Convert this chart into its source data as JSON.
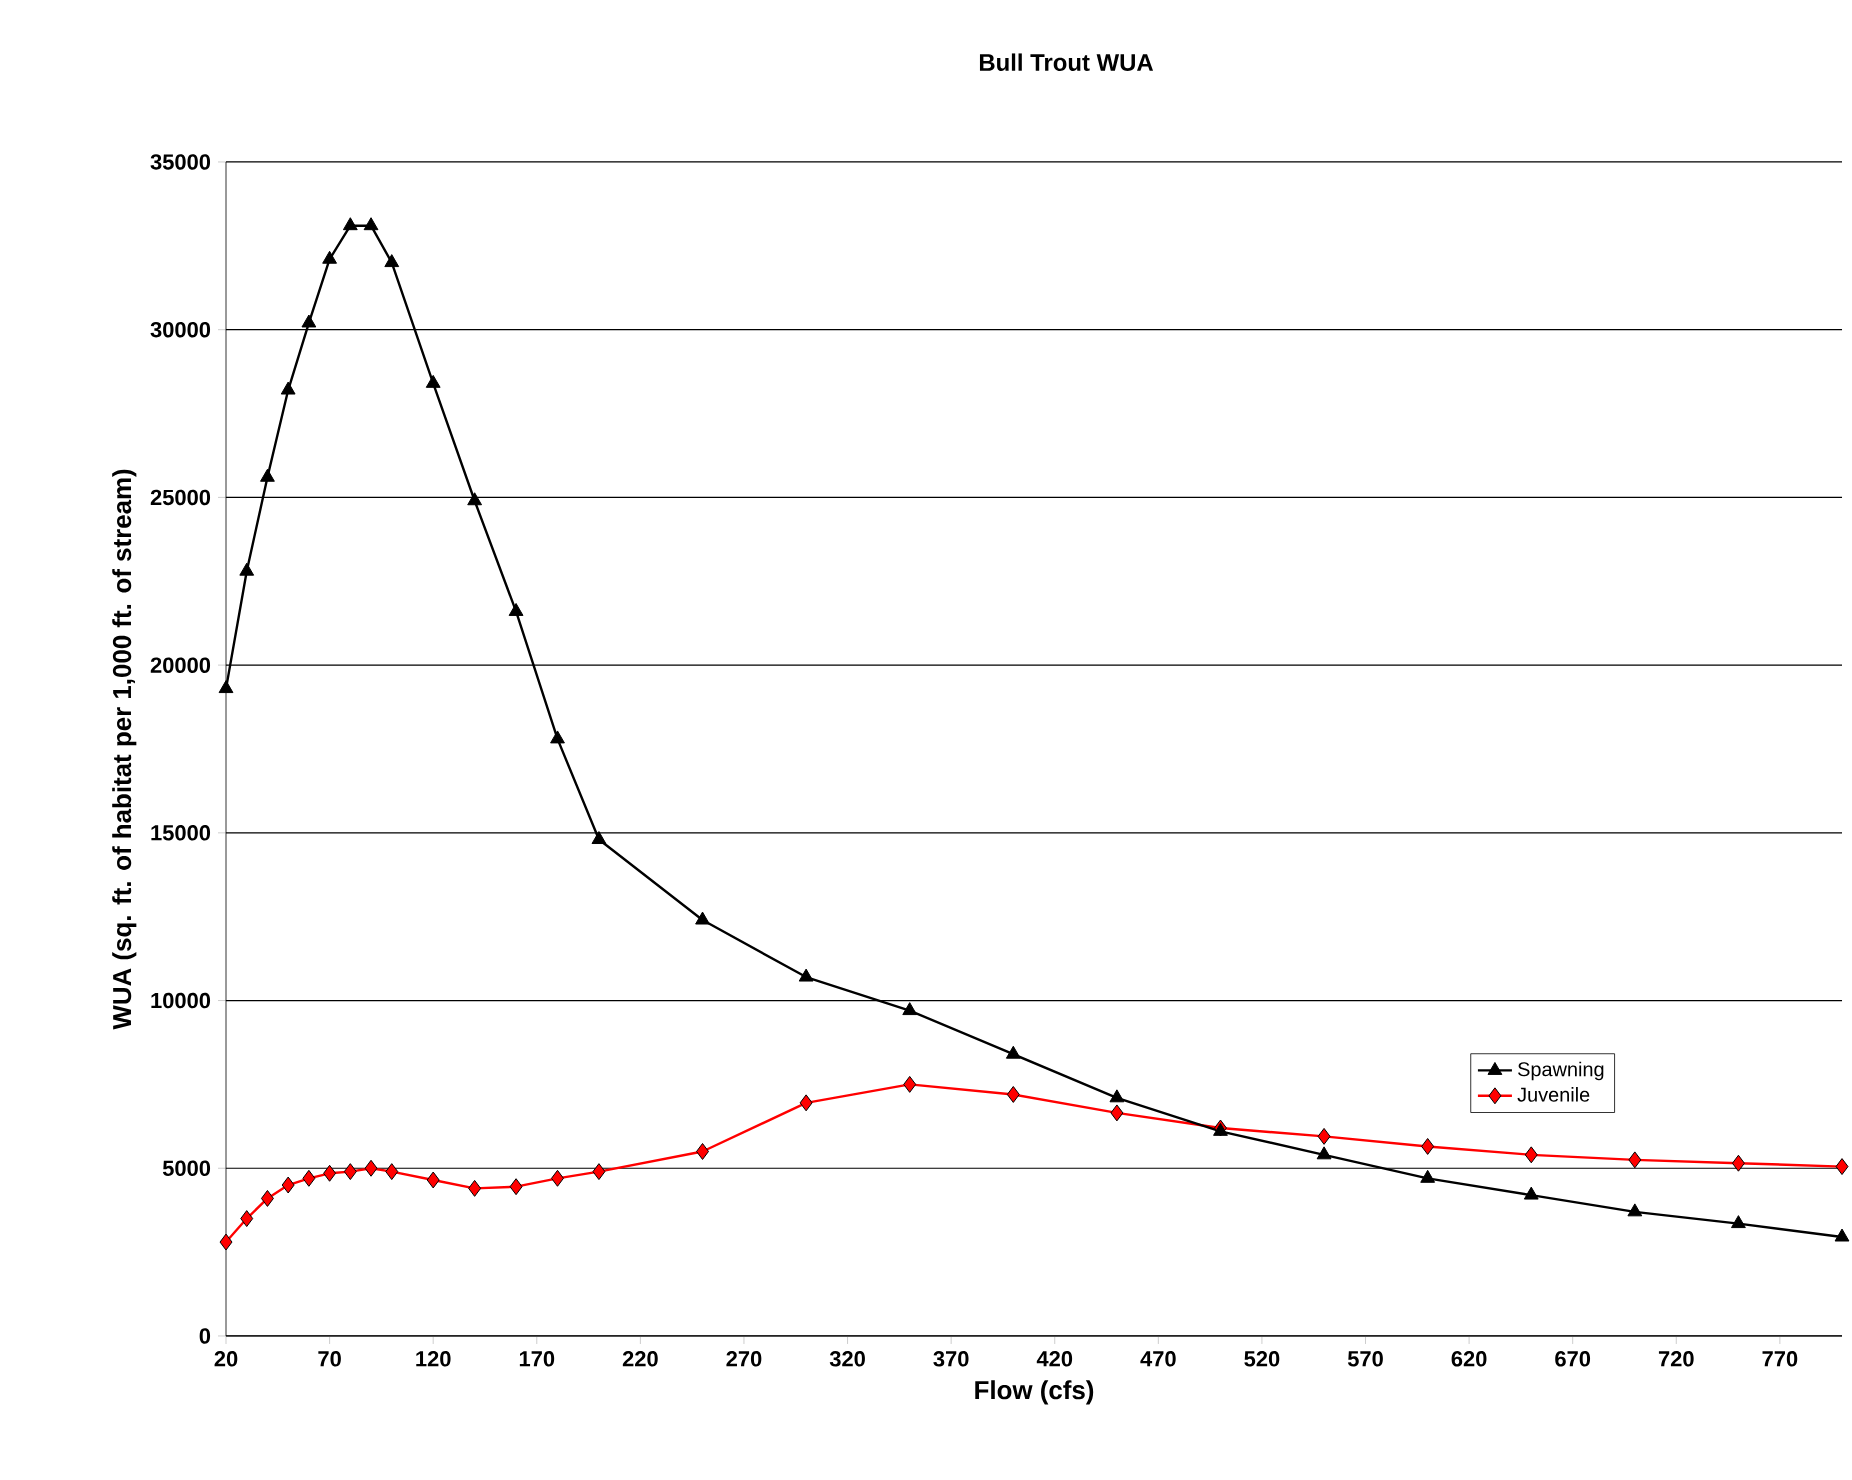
{
  "chart_data": {
    "type": "line",
    "title": "Bull Trout WUA",
    "xlabel": "Flow (cfs)",
    "ylabel": "WUA (sq. ft. of habitat per 1,000 ft. of stream)",
    "x": [
      20,
      30,
      40,
      50,
      60,
      70,
      80,
      90,
      100,
      120,
      140,
      160,
      180,
      200,
      250,
      300,
      350,
      400,
      450,
      500,
      550,
      600,
      650,
      700,
      750,
      800
    ],
    "series": [
      {
        "name": "Spawning",
        "color": "#000000",
        "marker": "triangle",
        "values": [
          19300,
          22800,
          25600,
          28200,
          30200,
          32100,
          33100,
          33100,
          32000,
          28400,
          24900,
          21600,
          17800,
          14800,
          12400,
          10700,
          9700,
          8400,
          7100,
          6100,
          5400,
          4700,
          4200,
          3700,
          3350,
          2950
        ]
      },
      {
        "name": "Juvenile",
        "color": "#ff0000",
        "marker": "diamond",
        "values": [
          2800,
          3500,
          4100,
          4500,
          4700,
          4850,
          4900,
          5000,
          4900,
          4650,
          4400,
          4450,
          4700,
          4900,
          5500,
          6950,
          7500,
          7200,
          6650,
          6200,
          5950,
          5650,
          5400,
          5250,
          5150,
          5050
        ]
      }
    ],
    "xlim": [
      20,
      800
    ],
    "ylim": [
      0,
      35000
    ],
    "xticks": [
      20,
      70,
      120,
      170,
      220,
      270,
      320,
      370,
      420,
      470,
      520,
      570,
      620,
      670,
      720,
      770
    ],
    "yticks": [
      0,
      5000,
      10000,
      15000,
      20000,
      25000,
      30000,
      35000
    ],
    "grid": "y",
    "legend": "right",
    "line_style": "solid"
  }
}
